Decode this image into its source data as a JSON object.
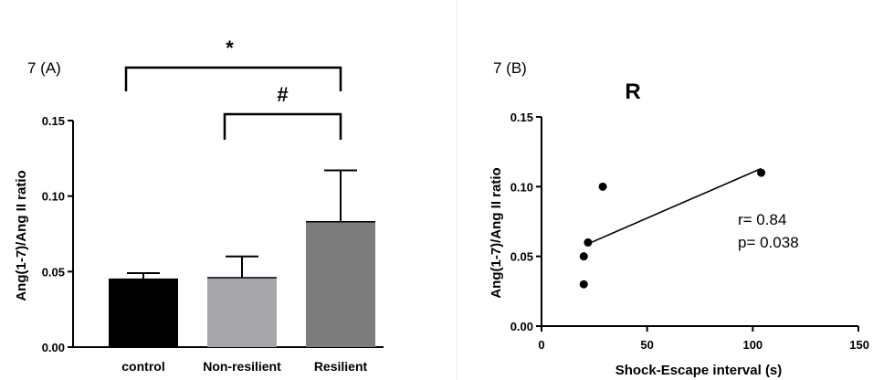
{
  "chart_data": [
    {
      "type": "bar",
      "panel_label": "7 (A)",
      "ylabel": "Ang(1-7)/Ang II ratio",
      "categories": [
        "control",
        "Non-resilient",
        "Resilient"
      ],
      "values": [
        0.045,
        0.046,
        0.083
      ],
      "errors": [
        0.004,
        0.014,
        0.034
      ],
      "bar_colors": [
        "#000000",
        "#a6a6ab",
        "#7d7d7d"
      ],
      "ylim": [
        0,
        0.15
      ],
      "yticks": [
        "0.00",
        "0.05",
        "0.10",
        "0.15"
      ],
      "grid": false,
      "significance": [
        {
          "label": "*",
          "from": 0,
          "to": 2
        },
        {
          "label": "#",
          "from": 1,
          "to": 2
        }
      ]
    },
    {
      "type": "scatter",
      "panel_label": "7 (B)",
      "title": "R",
      "xlabel": "Shock-Escape interval (s)",
      "ylabel": "Ang(1-7)/Ang II ratio",
      "points": [
        {
          "x": 20,
          "y": 0.03
        },
        {
          "x": 20,
          "y": 0.05
        },
        {
          "x": 22,
          "y": 0.06
        },
        {
          "x": 29,
          "y": 0.1
        },
        {
          "x": 104,
          "y": 0.11
        }
      ],
      "fit_line": {
        "x": [
          22,
          104
        ],
        "y": [
          0.059,
          0.113
        ]
      },
      "xlim": [
        0,
        150
      ],
      "ylim": [
        0,
        0.15
      ],
      "xticks": [
        "0",
        "50",
        "100",
        "150"
      ],
      "yticks": [
        "0.00",
        "0.05",
        "0.10",
        "0.15"
      ],
      "annotations": [
        "r= 0.84",
        "p= 0.038"
      ],
      "grid": false
    }
  ]
}
